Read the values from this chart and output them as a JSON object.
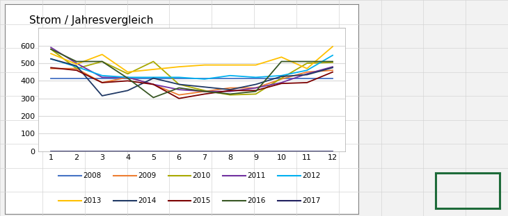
{
  "title": "Strom / Jahresvergleich",
  "x": [
    1,
    2,
    3,
    4,
    5,
    6,
    7,
    8,
    9,
    10,
    11,
    12
  ],
  "series": {
    "2008": [
      415,
      415,
      415,
      415,
      415,
      415,
      415,
      415,
      415,
      415,
      415,
      415
    ],
    "2009": [
      470,
      470,
      390,
      420,
      380,
      320,
      340,
      360,
      360,
      410,
      450,
      460
    ],
    "2010": [
      580,
      470,
      510,
      440,
      510,
      380,
      345,
      320,
      325,
      415,
      500,
      505
    ],
    "2011": [
      590,
      500,
      420,
      420,
      380,
      350,
      340,
      340,
      360,
      390,
      440,
      480
    ],
    "2012": [
      525,
      480,
      430,
      420,
      420,
      420,
      410,
      430,
      420,
      430,
      460,
      545
    ],
    "2013": [
      555,
      495,
      550,
      450,
      465,
      480,
      490,
      490,
      490,
      535,
      470,
      595
    ],
    "2014": [
      525,
      485,
      315,
      345,
      415,
      380,
      365,
      350,
      380,
      425,
      435,
      475
    ],
    "2015": [
      475,
      460,
      390,
      400,
      380,
      300,
      325,
      345,
      345,
      385,
      390,
      450
    ],
    "2016": [
      580,
      510,
      510,
      415,
      305,
      360,
      340,
      325,
      340,
      510,
      510,
      510
    ],
    "2017": [
      0,
      0,
      0,
      0,
      0,
      0,
      0,
      0,
      0,
      0,
      0,
      0
    ]
  },
  "colors": {
    "2008": "#4472c4",
    "2009": "#ed7d31",
    "2010": "#a9a900",
    "2011": "#7030a0",
    "2012": "#00b0f0",
    "2013": "#ffc000",
    "2014": "#1f3864",
    "2015": "#7b0000",
    "2016": "#375623",
    "2017": "#1f1f5e"
  },
  "ylim": [
    0,
    700
  ],
  "yticks": [
    0,
    100,
    200,
    300,
    400,
    500,
    600,
    700
  ],
  "xticks": [
    1,
    2,
    3,
    4,
    5,
    6,
    7,
    8,
    9,
    10,
    11,
    12
  ],
  "chart_bg": "#ffffff",
  "fig_bg": "#f2f2f2",
  "grid_color": "#d9d9d9",
  "excel_cell_color": "#f2f2f2",
  "excel_line_color": "#d4d4d4",
  "legend_rows": [
    [
      "2008",
      "2009",
      "2010",
      "2011",
      "2012"
    ],
    [
      "2013",
      "2014",
      "2015",
      "2016",
      "2017"
    ]
  ],
  "chart_border_color": "#808080",
  "green_box_color": "#1e6b3a"
}
